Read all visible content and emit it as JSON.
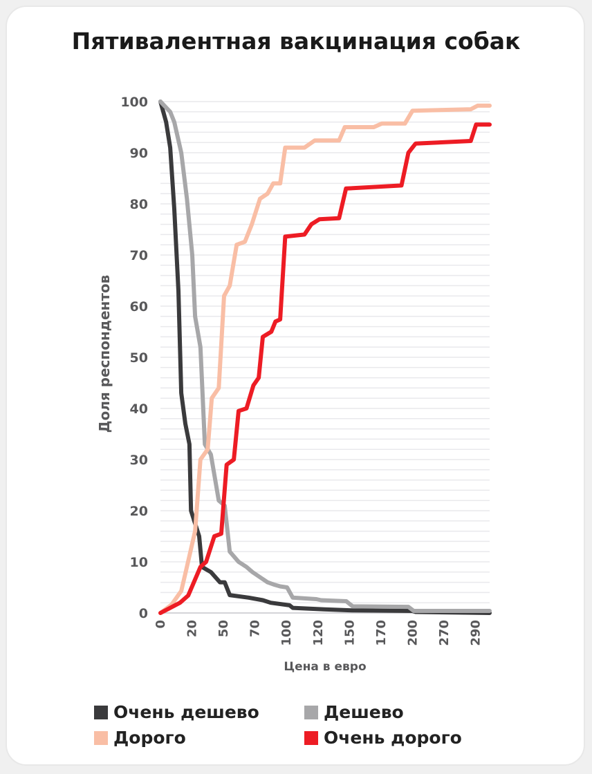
{
  "chart_data": {
    "type": "line",
    "title": "Пятивалентная вакцинация собак",
    "xlabel": "Цена в евро",
    "ylabel": "Доля респондентов",
    "ylim": [
      0,
      100
    ],
    "yticks": [
      0,
      10,
      20,
      30,
      40,
      50,
      60,
      70,
      80,
      90,
      100
    ],
    "x_note": "x values are positions along the non-linear price axis, in tick-index units (tick i = xtick_labels[i])",
    "xlim": [
      0,
      10.45
    ],
    "xtick_labels": [
      "0",
      "20",
      "50",
      "70",
      "100",
      "120",
      "150",
      "170",
      "200",
      "270",
      "290"
    ],
    "grid": true,
    "legend_position": "bottom",
    "series": [
      {
        "name": "Очень дешево",
        "color": "#3a3a3c",
        "points": [
          [
            0,
            100
          ],
          [
            0.18,
            96
          ],
          [
            0.31,
            91
          ],
          [
            0.44,
            79
          ],
          [
            0.57,
            63
          ],
          [
            0.66,
            43
          ],
          [
            0.79,
            37
          ],
          [
            0.92,
            33
          ],
          [
            0.97,
            20
          ],
          [
            1.23,
            15
          ],
          [
            1.32,
            9
          ],
          [
            1.6,
            8
          ],
          [
            1.89,
            6
          ],
          [
            2.04,
            6
          ],
          [
            2.2,
            3.5
          ],
          [
            2.8,
            3
          ],
          [
            3.25,
            2.5
          ],
          [
            3.5,
            2
          ],
          [
            4.1,
            1.5
          ],
          [
            4.2,
            1
          ],
          [
            5.2,
            0.7
          ],
          [
            6.1,
            0.5
          ],
          [
            8.0,
            0.4
          ],
          [
            8.1,
            0.2
          ],
          [
            10.45,
            0
          ]
        ]
      },
      {
        "name": "Дешево",
        "color": "#a7a7a9",
        "points": [
          [
            0,
            100
          ],
          [
            0.31,
            98
          ],
          [
            0.44,
            96
          ],
          [
            0.66,
            90
          ],
          [
            0.84,
            81
          ],
          [
            1.01,
            70
          ],
          [
            1.1,
            58
          ],
          [
            1.27,
            52
          ],
          [
            1.41,
            33
          ],
          [
            1.6,
            31
          ],
          [
            1.85,
            22
          ],
          [
            2.04,
            21
          ],
          [
            2.2,
            12
          ],
          [
            2.48,
            10
          ],
          [
            2.73,
            9
          ],
          [
            2.92,
            8
          ],
          [
            3.16,
            7
          ],
          [
            3.4,
            6
          ],
          [
            3.63,
            5.5
          ],
          [
            3.8,
            5.2
          ],
          [
            4.02,
            5
          ],
          [
            4.2,
            3
          ],
          [
            4.95,
            2.7
          ],
          [
            5.1,
            2.5
          ],
          [
            5.9,
            2.3
          ],
          [
            6.1,
            1.3
          ],
          [
            7.87,
            1.2
          ],
          [
            8.04,
            0.4
          ],
          [
            10.45,
            0.4
          ]
        ]
      },
      {
        "name": "Дорого",
        "color": "#f9bea5",
        "points": [
          [
            0,
            0
          ],
          [
            0.35,
            1.6
          ],
          [
            0.66,
            4.3
          ],
          [
            0.79,
            7.7
          ],
          [
            1.1,
            16
          ],
          [
            1.27,
            30
          ],
          [
            1.5,
            32
          ],
          [
            1.63,
            42
          ],
          [
            1.85,
            44
          ],
          [
            2.02,
            62
          ],
          [
            2.2,
            64
          ],
          [
            2.42,
            72
          ],
          [
            2.68,
            72.6
          ],
          [
            2.9,
            76
          ],
          [
            3.16,
            81
          ],
          [
            3.4,
            82
          ],
          [
            3.58,
            84
          ],
          [
            3.8,
            84
          ],
          [
            3.96,
            91
          ],
          [
            4.57,
            91
          ],
          [
            4.9,
            92.4
          ],
          [
            5.67,
            92.4
          ],
          [
            5.85,
            95
          ],
          [
            6.77,
            95
          ],
          [
            7.03,
            95.7
          ],
          [
            7.76,
            95.7
          ],
          [
            8.0,
            98.2
          ],
          [
            9.85,
            98.5
          ],
          [
            10.07,
            99.2
          ],
          [
            10.45,
            99.2
          ]
        ]
      },
      {
        "name": "Очень дорого",
        "color": "#ed1c24",
        "points": [
          [
            0,
            0
          ],
          [
            0.62,
            2
          ],
          [
            0.88,
            3.4
          ],
          [
            1.27,
            9
          ],
          [
            1.45,
            10
          ],
          [
            1.71,
            15
          ],
          [
            1.93,
            15.5
          ],
          [
            2.1,
            29
          ],
          [
            2.33,
            30
          ],
          [
            2.48,
            39.5
          ],
          [
            2.73,
            40
          ],
          [
            2.95,
            44.5
          ],
          [
            3.12,
            46
          ],
          [
            3.25,
            54
          ],
          [
            3.52,
            55
          ],
          [
            3.65,
            57
          ],
          [
            3.8,
            57.4
          ],
          [
            3.96,
            73.6
          ],
          [
            4.57,
            74
          ],
          [
            4.79,
            76
          ],
          [
            5.05,
            77
          ],
          [
            5.67,
            77.2
          ],
          [
            5.89,
            83
          ],
          [
            7.65,
            83.6
          ],
          [
            7.87,
            90
          ],
          [
            8.1,
            91.8
          ],
          [
            9.85,
            92.3
          ],
          [
            10.02,
            95.5
          ],
          [
            10.45,
            95.5
          ]
        ]
      }
    ]
  }
}
